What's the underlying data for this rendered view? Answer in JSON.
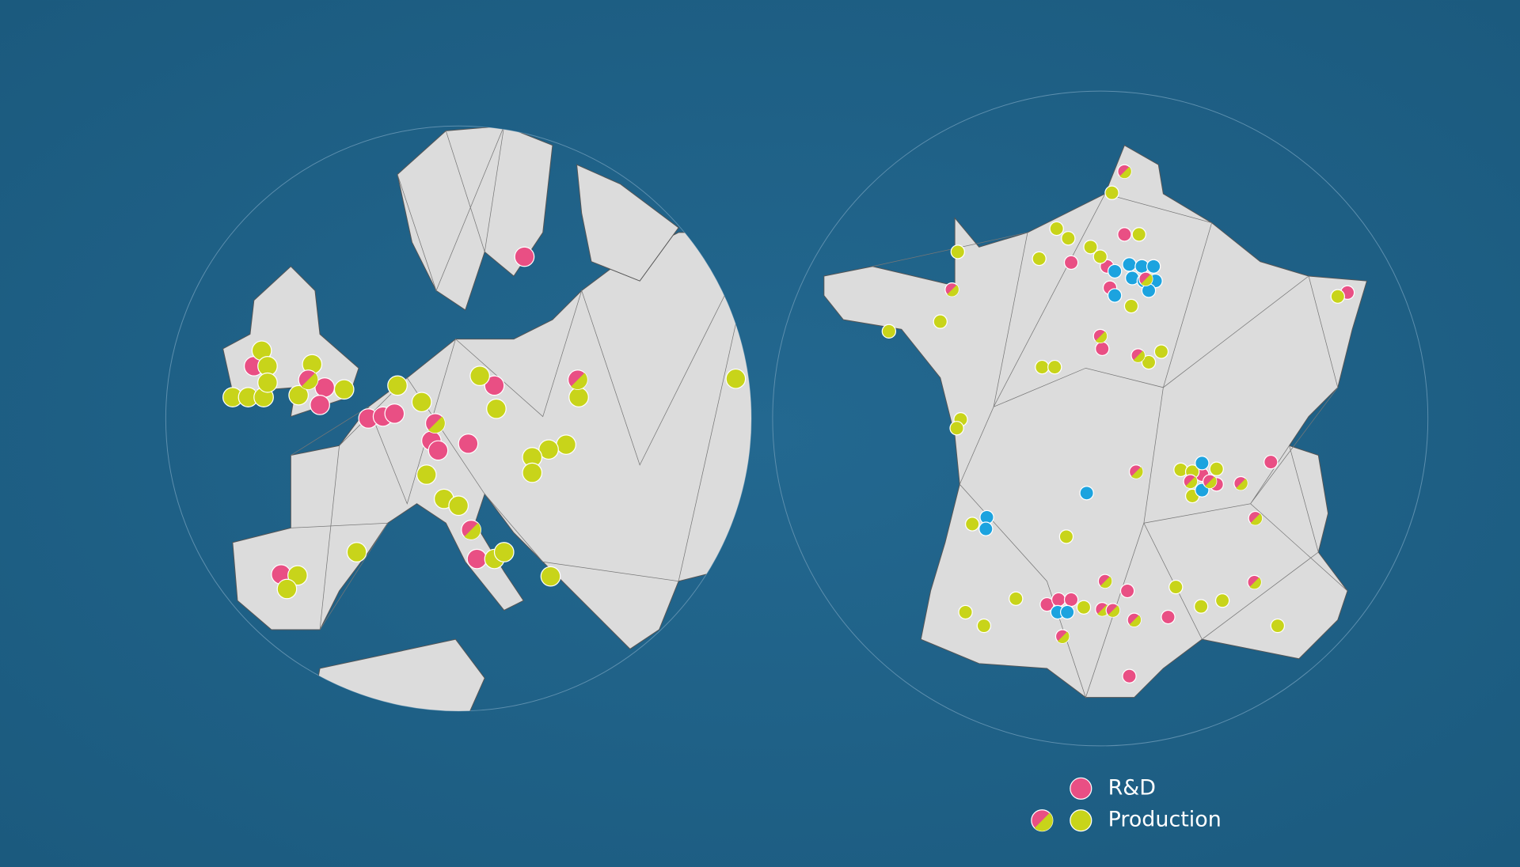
{
  "legend": {
    "items": [
      {
        "label": "R&D"
      },
      {
        "label": "Production"
      }
    ]
  }
}
